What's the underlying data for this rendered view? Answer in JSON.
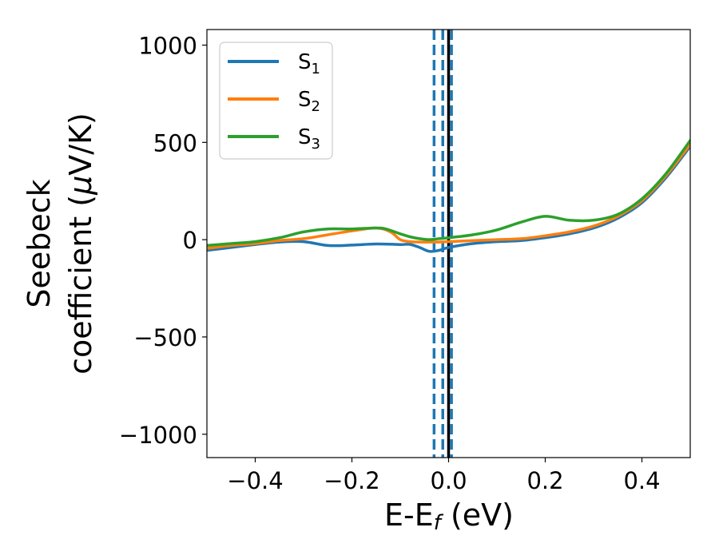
{
  "chart_data": {
    "type": "line",
    "xlabel": "E-E",
    "xlabel_sub": "f",
    "xlabel_unit": " (eV)",
    "ylabel_line1": "Seebeck",
    "ylabel_line2_pre": "coefficient  (",
    "ylabel_line2_mu": "μ",
    "ylabel_line2_post": "V/K)",
    "xlim": [
      -0.5,
      0.5
    ],
    "ylim": [
      -1120,
      1080
    ],
    "xticks": [
      -0.4,
      -0.2,
      0.0,
      0.2,
      0.4
    ],
    "xtick_labels": [
      "−0.4",
      "−0.2",
      "0.0",
      "0.2",
      "0.4"
    ],
    "yticks": [
      1000,
      500,
      0,
      -500,
      -1000
    ],
    "ytick_labels": [
      "1000",
      "500",
      "0",
      "−500",
      "−1000"
    ],
    "grid": false,
    "legend_position": "upper-left",
    "series": [
      {
        "name": "S",
        "sub": "1",
        "color": "#1f77b4",
        "x": [
          -0.5,
          -0.45,
          -0.4,
          -0.35,
          -0.3,
          -0.25,
          -0.2,
          -0.15,
          -0.1,
          -0.08,
          -0.06,
          -0.04,
          -0.02,
          0.0,
          0.05,
          0.1,
          0.15,
          0.2,
          0.25,
          0.3,
          0.35,
          0.4,
          0.45,
          0.5
        ],
        "y": [
          -55,
          -40,
          -25,
          -12,
          -10,
          -30,
          -28,
          -22,
          -25,
          -24,
          -40,
          -60,
          -55,
          -40,
          -20,
          -10,
          -5,
          10,
          30,
          60,
          110,
          190,
          320,
          480
        ]
      },
      {
        "name": "S",
        "sub": "2",
        "color": "#ff7f0e",
        "x": [
          -0.5,
          -0.45,
          -0.4,
          -0.35,
          -0.3,
          -0.25,
          -0.2,
          -0.15,
          -0.12,
          -0.1,
          -0.08,
          -0.06,
          -0.04,
          -0.02,
          0.0,
          0.05,
          0.1,
          0.15,
          0.2,
          0.25,
          0.3,
          0.35,
          0.4,
          0.45,
          0.5
        ],
        "y": [
          -45,
          -30,
          -20,
          -5,
          5,
          25,
          45,
          60,
          40,
          0,
          -10,
          -12,
          -12,
          -12,
          -10,
          -5,
          0,
          5,
          20,
          40,
          70,
          120,
          200,
          330,
          490
        ]
      },
      {
        "name": "S",
        "sub": "3",
        "color": "#2ca02c",
        "x": [
          -0.5,
          -0.45,
          -0.4,
          -0.35,
          -0.3,
          -0.25,
          -0.2,
          -0.15,
          -0.13,
          -0.1,
          -0.08,
          -0.06,
          -0.04,
          -0.02,
          0.0,
          0.05,
          0.1,
          0.15,
          0.2,
          0.25,
          0.3,
          0.35,
          0.4,
          0.45,
          0.5
        ],
        "y": [
          -30,
          -20,
          -10,
          10,
          40,
          55,
          55,
          60,
          55,
          30,
          15,
          5,
          0,
          5,
          10,
          25,
          50,
          90,
          120,
          100,
          100,
          130,
          210,
          340,
          510
        ]
      }
    ],
    "vlines": [
      {
        "x": -0.03,
        "color": "#1f77b4",
        "style": "dashed"
      },
      {
        "x": -0.012,
        "color": "#1f77b4",
        "style": "dashed"
      },
      {
        "x": 0.006,
        "color": "#1f77b4",
        "style": "dashed"
      },
      {
        "x": 0.0,
        "color": "#000000",
        "style": "solid"
      }
    ]
  }
}
